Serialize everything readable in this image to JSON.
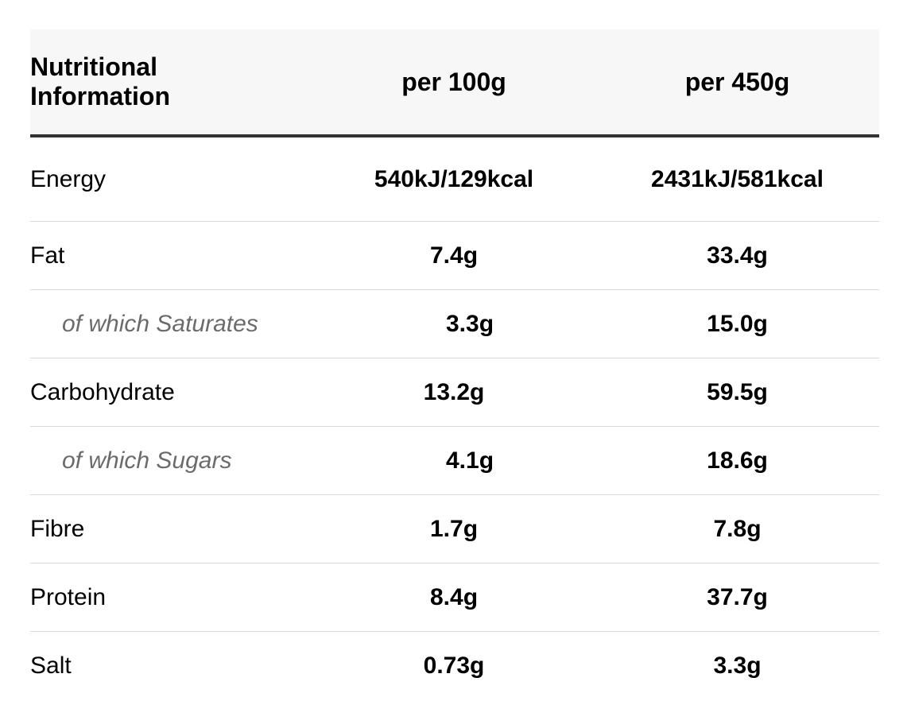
{
  "header": {
    "title": "Nutritional Information",
    "col_per100": "per 100g",
    "col_per450": "per 450g"
  },
  "rows": [
    {
      "label": "Energy",
      "per100": "540kJ/129kcal",
      "per450": "2431kJ/581kcal"
    },
    {
      "label": "Fat",
      "per100": "7.4g",
      "per450": "33.4g"
    },
    {
      "label": "of which Saturates",
      "per100": "3.3g",
      "per450": "15.0g"
    },
    {
      "label": "Carbohydrate",
      "per100": "13.2g",
      "per450": "59.5g"
    },
    {
      "label": "of which Sugars",
      "per100": "4.1g",
      "per450": "18.6g"
    },
    {
      "label": "Fibre",
      "per100": "1.7g",
      "per450": "7.8g"
    },
    {
      "label": "Protein",
      "per100": "8.4g",
      "per450": "37.7g"
    },
    {
      "label": "Salt",
      "per100": "0.73g",
      "per450": "3.3g"
    }
  ]
}
